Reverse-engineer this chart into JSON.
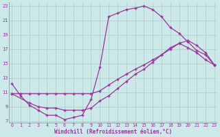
{
  "background_color": "#cce8e8",
  "line_color": "#993399",
  "grid_color": "#aacccc",
  "xlabel": "Windchill (Refroidissement éolien,°C)",
  "xlim": [
    0,
    23
  ],
  "ylim": [
    7,
    23
  ],
  "xticks": [
    0,
    1,
    2,
    3,
    4,
    5,
    6,
    7,
    8,
    9,
    10,
    11,
    12,
    13,
    14,
    15,
    16,
    17,
    18,
    19,
    20,
    21,
    22,
    23
  ],
  "yticks": [
    7,
    9,
    11,
    13,
    15,
    17,
    19,
    21,
    23
  ],
  "line1_x": [
    0,
    1,
    2,
    3,
    4,
    5,
    6,
    7,
    8,
    9,
    10,
    11,
    12,
    13,
    14,
    15,
    16,
    17,
    18,
    19,
    20,
    21,
    22,
    23
  ],
  "line1_y": [
    12.2,
    10.5,
    9.2,
    8.5,
    7.8,
    7.8,
    7.2,
    7.5,
    7.8,
    10.0,
    14.5,
    21.5,
    22.0,
    22.5,
    22.7,
    23.0,
    22.5,
    21.5,
    20.0,
    19.2,
    18.0,
    16.8,
    16.2,
    14.8
  ],
  "line2_x": [
    0,
    1,
    2,
    3,
    4,
    5,
    6,
    7,
    8,
    9,
    10,
    11,
    12,
    13,
    14,
    15,
    16,
    17,
    18,
    19,
    20,
    21,
    22,
    23
  ],
  "line2_y": [
    10.8,
    10.8,
    10.8,
    10.8,
    10.8,
    10.8,
    10.8,
    10.8,
    10.8,
    10.8,
    11.2,
    12.0,
    12.8,
    13.5,
    14.2,
    14.8,
    15.5,
    16.2,
    17.0,
    17.8,
    18.2,
    17.5,
    16.5,
    14.8
  ],
  "line3_x": [
    0,
    2,
    3,
    4,
    5,
    6,
    7,
    8,
    9,
    10,
    11,
    12,
    13,
    14,
    15,
    16,
    17,
    18,
    19,
    20,
    21,
    22,
    23
  ],
  "line3_y": [
    10.8,
    9.5,
    9.0,
    8.8,
    8.8,
    8.5,
    8.5,
    8.5,
    8.8,
    9.8,
    10.5,
    11.5,
    12.5,
    13.5,
    14.2,
    15.2,
    16.2,
    17.2,
    17.8,
    17.2,
    16.5,
    15.5,
    14.8
  ]
}
